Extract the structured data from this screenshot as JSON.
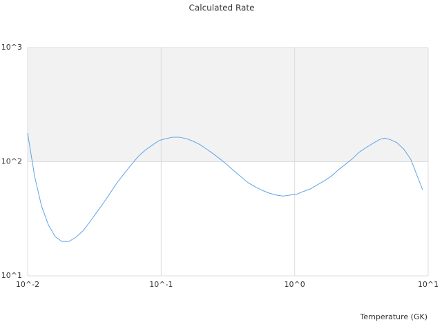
{
  "chart_data": {
    "type": "line",
    "title": "Calculated Rate",
    "x_label": "Temperature (GK)",
    "x": [
      0.01,
      0.01127,
      0.0127,
      0.0143,
      0.0161,
      0.0181,
      0.0204,
      0.023,
      0.0259,
      0.0292,
      0.0329,
      0.0371,
      0.0418,
      0.047,
      0.053,
      0.0597,
      0.0673,
      0.0758,
      0.0854,
      0.0962,
      0.108,
      0.122,
      0.137,
      0.155,
      0.174,
      0.196,
      0.221,
      0.249,
      0.281,
      0.316,
      0.356,
      0.401,
      0.452,
      0.509,
      0.574,
      0.646,
      0.728,
      0.82,
      0.924,
      1.04,
      1.17,
      1.32,
      1.49,
      1.67,
      1.89,
      2.13,
      2.4,
      2.7,
      3.04,
      3.43,
      3.86,
      4.35,
      4.7,
      5.15,
      5.82,
      6.56,
      7.4,
      9.07
    ],
    "series": [
      {
        "color": "#5ea3e8",
        "values": [
          178,
          75,
          41,
          28,
          22,
          20,
          20,
          21.8,
          24.7,
          29.6,
          36,
          43.7,
          53.8,
          66,
          79,
          94,
          111,
          126,
          139,
          153,
          159,
          164,
          164,
          159,
          151,
          141,
          128,
          116,
          104,
          93,
          82,
          73,
          65,
          60,
          56,
          53,
          51,
          50,
          51,
          52,
          55,
          58,
          63,
          68,
          75,
          85,
          95,
          106,
          121,
          133,
          145,
          157,
          161,
          157,
          147,
          129,
          105,
          57
        ]
      }
    ],
    "xlim": [
      0.01,
      10
    ],
    "ylim": [
      10,
      1000
    ],
    "log_x": true,
    "log_y": true,
    "xticks": [
      {
        "value": 0.01,
        "label": "10^-2"
      },
      {
        "value": 0.1,
        "label": "10^-1"
      },
      {
        "value": 1,
        "label": "10^0"
      },
      {
        "value": 10,
        "label": "10^1"
      }
    ],
    "yticks": [
      {
        "value": 10,
        "label": "10^1"
      },
      {
        "value": 100,
        "label": "10^2"
      },
      {
        "value": 1000,
        "label": "10^3"
      }
    ],
    "grid": true,
    "band_color": "#f2f2f2"
  }
}
